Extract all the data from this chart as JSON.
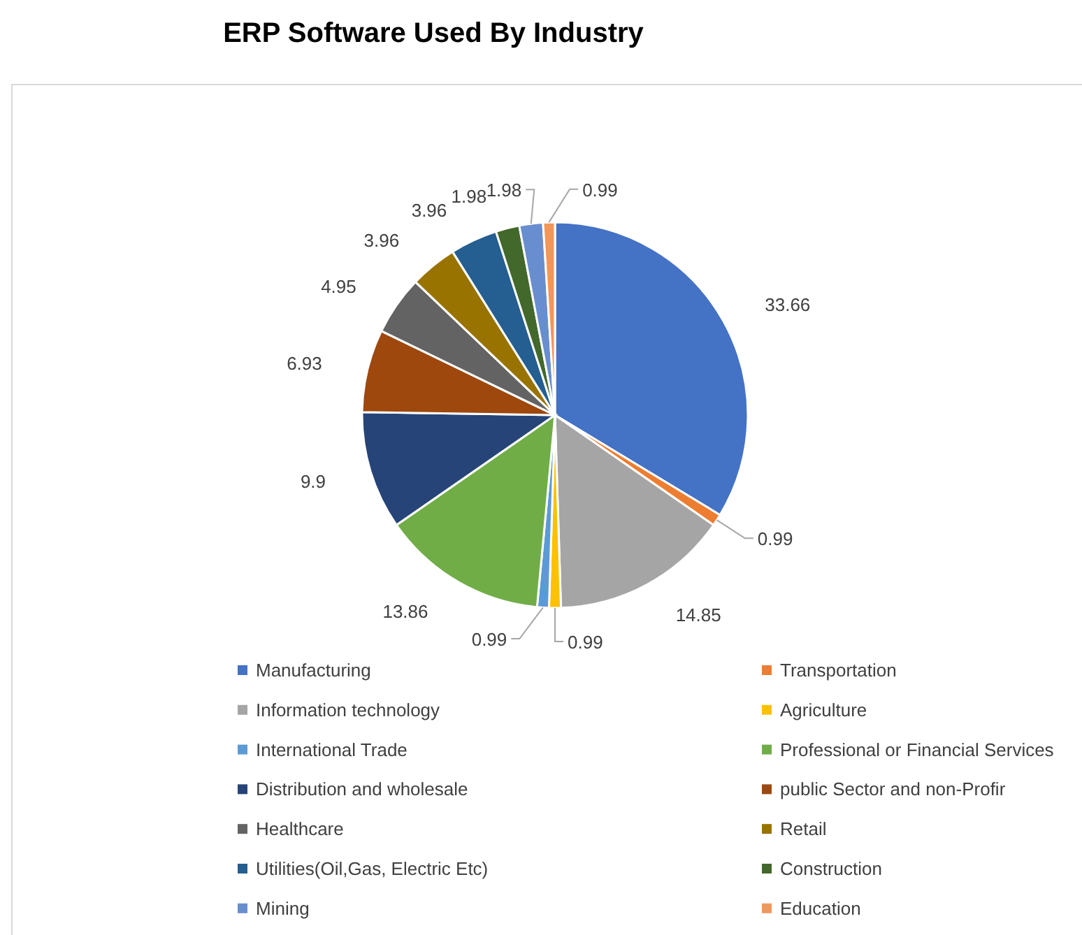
{
  "chart_data": {
    "type": "pie",
    "title": "ERP Software Used By Industry",
    "categories": [
      "Manufacturing",
      "Transportation",
      "Information technology",
      "Agriculture",
      "International Trade",
      "Professional or Financial Services",
      "Distribution and wholesale",
      "public Sector and non-Profir",
      "Healthcare",
      "Retail",
      "Utilities(Oil,Gas, Electric Etc)",
      "Construction",
      "Mining",
      "Education"
    ],
    "values": [
      33.66,
      0.99,
      14.85,
      0.99,
      0.99,
      13.86,
      9.9,
      6.93,
      4.95,
      3.96,
      3.96,
      1.98,
      1.98,
      0.99
    ],
    "colors": [
      "#4472c4",
      "#ed7d31",
      "#a5a5a5",
      "#ffc000",
      "#5b9bd5",
      "#70ad47",
      "#264478",
      "#9e480e",
      "#636363",
      "#997300",
      "#255e91",
      "#43682b",
      "#698ed0",
      "#f1975a"
    ],
    "data_labels": true,
    "legend": "bottom"
  }
}
